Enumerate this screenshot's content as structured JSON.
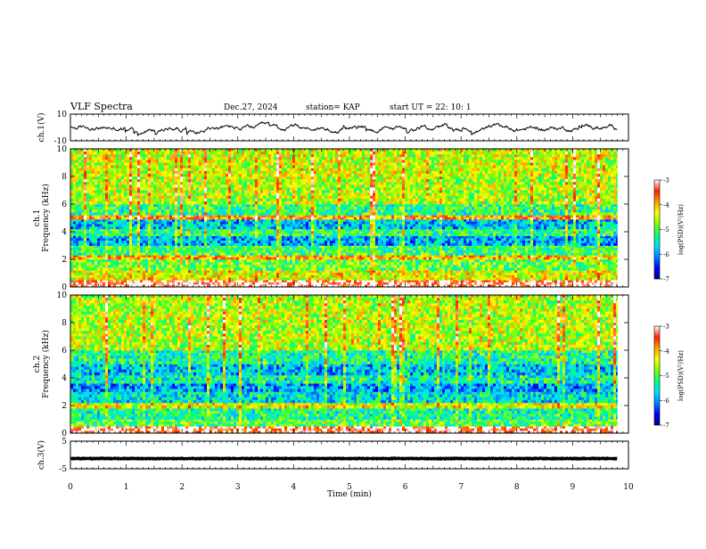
{
  "header": {
    "title": "VLF Spectra",
    "date": "Dec.27, 2024",
    "station": "station= KAP",
    "start": "start  UT =   22: 10: 1"
  },
  "colors": {
    "scale": [
      "#000080",
      "#0000ff",
      "#0080ff",
      "#00e0ff",
      "#00ff80",
      "#80ff00",
      "#ffff00",
      "#ffa000",
      "#ff2000",
      "#ffffff"
    ]
  },
  "chart_data": [
    {
      "type": "line",
      "panel": "ch1-waveform",
      "ylabel": "ch.1(V)",
      "ylim": [
        -10,
        10
      ],
      "yticks": [
        {
          "value": 10,
          "label": "10"
        },
        {
          "value": -10,
          "label": "-10"
        }
      ],
      "x_extent_min": [
        0,
        9.8
      ],
      "level_range_v": [
        -4,
        3
      ]
    },
    {
      "type": "heatmap",
      "panel": "ch1-spectrogram",
      "ylabel_lines": [
        "ch.1",
        "Frequency  (kHz)"
      ],
      "ylim": [
        0,
        10
      ],
      "yticks": [
        {
          "value": 0,
          "label": "0"
        },
        {
          "value": 2,
          "label": "2"
        },
        {
          "value": 4,
          "label": "4"
        },
        {
          "value": 6,
          "label": "6"
        },
        {
          "value": 8,
          "label": "8"
        },
        {
          "value": 10,
          "label": "10"
        }
      ],
      "colorbar": {
        "label": "log(PSD)(V²/Hz)",
        "range": [
          -7,
          -3
        ],
        "ticks": [
          {
            "value": -3,
            "label": "-3"
          },
          {
            "value": -4,
            "label": "-4"
          },
          {
            "value": -5,
            "label": "-5"
          },
          {
            "value": -6,
            "label": "-6"
          },
          {
            "value": -7,
            "label": "-7"
          }
        ]
      },
      "bands": [
        {
          "freq_khz": [
            0.0,
            0.5
          ],
          "level": -3.2
        },
        {
          "freq_khz": [
            0.5,
            1.2
          ],
          "level": -4.4
        },
        {
          "freq_khz": [
            1.2,
            2.0
          ],
          "level": -4.9
        },
        {
          "freq_khz": [
            2.0,
            2.3
          ],
          "level": -4.0
        },
        {
          "freq_khz": [
            2.3,
            3.0
          ],
          "level": -5.1
        },
        {
          "freq_khz": [
            3.0,
            3.7
          ],
          "level": -5.9
        },
        {
          "freq_khz": [
            3.7,
            4.2
          ],
          "level": -5.2
        },
        {
          "freq_khz": [
            4.2,
            4.9
          ],
          "level": -5.8
        },
        {
          "freq_khz": [
            4.9,
            5.2
          ],
          "level": -3.9
        },
        {
          "freq_khz": [
            5.2,
            6.0
          ],
          "level": -5.2
        },
        {
          "freq_khz": [
            6.0,
            8.0
          ],
          "level": -4.6
        },
        {
          "freq_khz": [
            8.0,
            10.0
          ],
          "level": -4.5
        }
      ]
    },
    {
      "type": "heatmap",
      "panel": "ch2-spectrogram",
      "ylabel_lines": [
        "ch.2",
        "Frequency  (kHz)"
      ],
      "ylim": [
        0,
        10
      ],
      "yticks": [
        {
          "value": 0,
          "label": "0"
        },
        {
          "value": 2,
          "label": "2"
        },
        {
          "value": 4,
          "label": "4"
        },
        {
          "value": 6,
          "label": "6"
        },
        {
          "value": 8,
          "label": "8"
        },
        {
          "value": 10,
          "label": "10"
        }
      ],
      "colorbar": {
        "label": "log(PSD)(V²/Hz)",
        "range": [
          -7,
          -3
        ],
        "ticks": [
          {
            "value": -3,
            "label": "-3"
          },
          {
            "value": -4,
            "label": "-4"
          },
          {
            "value": -5,
            "label": "-5"
          },
          {
            "value": -6,
            "label": "-6"
          },
          {
            "value": -7,
            "label": "-7"
          }
        ]
      },
      "bands": [
        {
          "freq_khz": [
            0.0,
            0.5
          ],
          "level": -3.2
        },
        {
          "freq_khz": [
            0.5,
            1.0
          ],
          "level": -5.0
        },
        {
          "freq_khz": [
            1.0,
            1.8
          ],
          "level": -5.3
        },
        {
          "freq_khz": [
            1.8,
            2.2
          ],
          "level": -4.4
        },
        {
          "freq_khz": [
            2.2,
            3.0
          ],
          "level": -5.6
        },
        {
          "freq_khz": [
            3.0,
            3.6
          ],
          "level": -6.0
        },
        {
          "freq_khz": [
            3.6,
            4.2
          ],
          "level": -5.4
        },
        {
          "freq_khz": [
            4.2,
            5.0
          ],
          "level": -5.8
        },
        {
          "freq_khz": [
            5.0,
            6.0
          ],
          "level": -5.3
        },
        {
          "freq_khz": [
            6.0,
            8.0
          ],
          "level": -4.6
        },
        {
          "freq_khz": [
            8.0,
            10.0
          ],
          "level": -4.6
        }
      ]
    },
    {
      "type": "line",
      "panel": "ch3-waveform",
      "ylabel": "ch.3(V)",
      "ylim": [
        -5,
        5
      ],
      "yticks": [
        {
          "value": 5,
          "label": "5"
        },
        {
          "value": -5,
          "label": "-5"
        }
      ],
      "level_range_v": [
        -1.8,
        -0.8
      ]
    }
  ],
  "x_axis": {
    "label": "Time  (min)",
    "range": [
      0,
      10
    ],
    "data_extent": [
      0,
      9.8
    ],
    "ticks": [
      {
        "value": 0,
        "label": "0"
      },
      {
        "value": 1,
        "label": "1"
      },
      {
        "value": 2,
        "label": "2"
      },
      {
        "value": 3,
        "label": "3"
      },
      {
        "value": 4,
        "label": "4"
      },
      {
        "value": 5,
        "label": "5"
      },
      {
        "value": 6,
        "label": "6"
      },
      {
        "value": 7,
        "label": "7"
      },
      {
        "value": 8,
        "label": "8"
      },
      {
        "value": 9,
        "label": "9"
      },
      {
        "value": 10,
        "label": "10"
      }
    ]
  }
}
